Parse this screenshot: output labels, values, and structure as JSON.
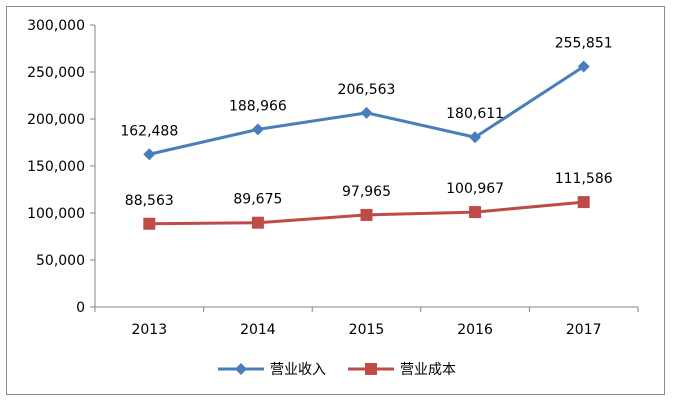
{
  "chart_data": {
    "type": "line",
    "categories": [
      "2013",
      "2014",
      "2015",
      "2016",
      "2017"
    ],
    "series": [
      {
        "name": "营业收入",
        "values": [
          162488,
          188966,
          206563,
          180611,
          255851
        ],
        "labels": [
          "162,488",
          "188,966",
          "206,563",
          "180,611",
          "255,851"
        ],
        "color": "#4a7ebb",
        "marker": "diamond"
      },
      {
        "name": "营业成本",
        "values": [
          88563,
          89675,
          97965,
          100967,
          111586
        ],
        "labels": [
          "88,563",
          "89,675",
          "97,965",
          "100,967",
          "111,586"
        ],
        "color": "#be4b48",
        "marker": "square"
      }
    ],
    "y_ticks": [
      {
        "value": 0,
        "label": "0"
      },
      {
        "value": 50000,
        "label": "50,000"
      },
      {
        "value": 100000,
        "label": "100,000"
      },
      {
        "value": 150000,
        "label": "150,000"
      },
      {
        "value": 200000,
        "label": "200,000"
      },
      {
        "value": 250000,
        "label": "250,000"
      },
      {
        "value": 300000,
        "label": "300,000"
      }
    ],
    "ylim": [
      0,
      300000
    ],
    "grid": false,
    "legend_position": "bottom",
    "title": "",
    "xlabel": "",
    "ylabel": ""
  }
}
